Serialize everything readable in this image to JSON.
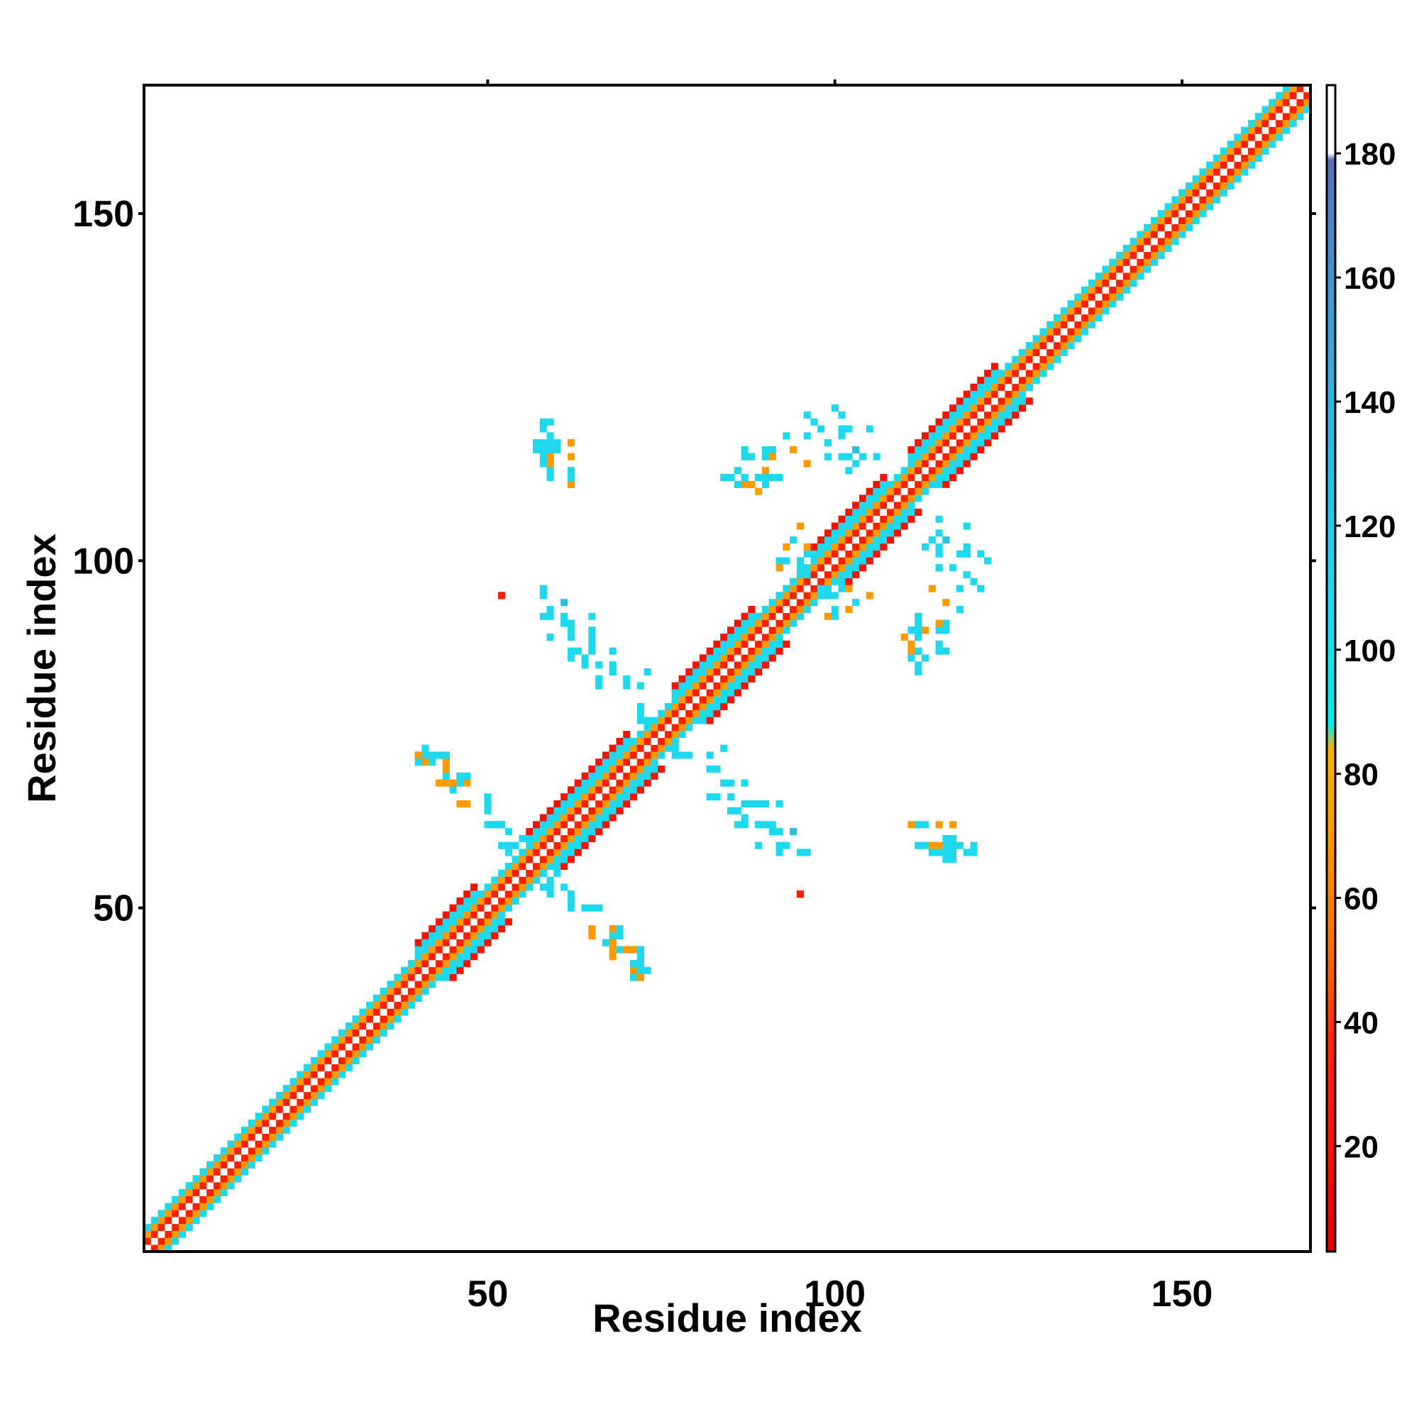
{
  "chart_data": {
    "type": "heatmap",
    "title": "",
    "xlabel": "Residue index",
    "ylabel": "Residue index",
    "xlim": [
      0.5,
      168.5
    ],
    "ylim": [
      0.5,
      168.5
    ],
    "x_ticks": [
      50,
      100,
      150
    ],
    "y_ticks": [
      50,
      100,
      150
    ],
    "colorbar": {
      "range": [
        3,
        191
      ],
      "ticks": [
        20,
        40,
        60,
        80,
        100,
        120,
        140,
        160,
        180
      ],
      "stops": [
        {
          "value": 3,
          "color": "#e60000"
        },
        {
          "value": 38,
          "color": "#ff2a00"
        },
        {
          "value": 50,
          "color": "#ff6a00"
        },
        {
          "value": 70,
          "color": "#ff9900"
        },
        {
          "value": 84,
          "color": "#ffb000"
        },
        {
          "value": 88,
          "color": "#00eeee"
        },
        {
          "value": 110,
          "color": "#1ed8ee"
        },
        {
          "value": 130,
          "color": "#29c0e0"
        },
        {
          "value": 150,
          "color": "#3aa6d8"
        },
        {
          "value": 170,
          "color": "#4c82c8"
        },
        {
          "value": 179,
          "color": "#5a6fb8"
        },
        {
          "value": 180,
          "color": "#ffffff"
        },
        {
          "value": 191,
          "color": "#ffffff"
        }
      ]
    },
    "diagonal_band": {
      "residues": [
        1,
        168
      ],
      "offset_values": {
        "0": 185,
        "1": 30,
        "2": 70,
        "3": 110
      },
      "wide_segments": [
        {
          "from": 40,
          "to": 48,
          "offset4_value": 110,
          "offset5_value": 20
        },
        {
          "from": 56,
          "to": 70,
          "offset4_value": 110,
          "offset5_value": 20
        },
        {
          "from": 77,
          "to": 88,
          "offset4_value": 110,
          "offset5_value": 20
        },
        {
          "from": 97,
          "to": 107,
          "offset4_value": 110,
          "offset5_value": 20
        },
        {
          "from": 111,
          "to": 123,
          "offset4_value": 110,
          "offset5_value": 20
        }
      ]
    },
    "cells": [
      [
        58,
        120,
        110
      ],
      [
        59,
        120,
        110
      ],
      [
        58,
        119,
        110
      ],
      [
        59,
        118,
        110
      ],
      [
        60,
        117,
        110
      ],
      [
        62,
        117,
        70
      ],
      [
        59,
        116,
        110
      ],
      [
        60,
        116,
        110
      ],
      [
        59,
        114,
        110
      ],
      [
        62,
        113,
        110
      ],
      [
        62,
        112,
        70
      ],
      [
        52,
        95,
        30
      ],
      [
        58,
        96,
        110
      ],
      [
        58,
        95,
        110
      ],
      [
        61,
        94,
        130
      ],
      [
        58,
        92,
        110
      ],
      [
        61,
        92,
        110
      ],
      [
        62,
        91,
        110
      ],
      [
        65,
        92,
        110
      ],
      [
        65,
        90,
        110
      ],
      [
        62,
        89,
        110
      ],
      [
        63,
        87,
        110
      ],
      [
        65,
        87,
        110
      ],
      [
        68,
        87,
        110
      ],
      [
        66,
        85,
        110
      ],
      [
        68,
        84,
        110
      ],
      [
        70,
        83,
        110
      ],
      [
        40,
        72,
        70
      ],
      [
        41,
        73,
        110
      ],
      [
        41,
        72,
        110
      ],
      [
        43,
        72,
        70
      ],
      [
        44,
        72,
        70
      ],
      [
        42,
        71,
        110
      ],
      [
        43,
        68,
        70
      ],
      [
        44,
        68,
        70
      ],
      [
        46,
        68,
        110
      ],
      [
        46,
        69,
        110
      ],
      [
        45,
        67,
        110
      ],
      [
        46,
        65,
        70
      ],
      [
        50,
        64,
        110
      ],
      [
        50,
        62,
        110
      ],
      [
        51,
        62,
        110
      ],
      [
        52,
        62,
        110
      ],
      [
        52,
        59,
        110
      ],
      [
        53,
        59,
        110
      ],
      [
        53,
        58,
        110
      ],
      [
        58,
        55,
        110
      ],
      [
        59,
        54,
        110
      ],
      [
        60,
        55,
        110
      ],
      [
        61,
        53,
        110
      ],
      [
        62,
        52,
        110
      ],
      [
        62,
        51,
        110
      ],
      [
        65,
        50,
        110
      ],
      [
        66,
        50,
        110
      ],
      [
        65,
        47,
        70
      ],
      [
        68,
        47,
        70
      ],
      [
        69,
        47,
        110
      ],
      [
        68,
        45,
        70
      ],
      [
        69,
        44,
        110
      ],
      [
        70,
        44,
        70
      ],
      [
        71,
        44,
        70
      ],
      [
        72,
        44,
        110
      ],
      [
        72,
        43,
        110
      ],
      [
        72,
        42,
        110
      ],
      [
        71,
        41,
        70
      ],
      [
        72,
        40,
        70
      ],
      [
        71,
        40,
        110
      ],
      [
        77,
        73,
        110
      ],
      [
        77,
        72,
        110
      ],
      [
        78,
        72,
        110
      ],
      [
        79,
        72,
        110
      ],
      [
        82,
        72,
        110
      ],
      [
        84,
        73,
        110
      ],
      [
        82,
        70,
        110
      ],
      [
        84,
        68,
        110
      ],
      [
        85,
        68,
        110
      ],
      [
        82,
        66,
        110
      ],
      [
        83,
        66,
        110
      ],
      [
        85,
        64,
        110
      ],
      [
        86,
        64,
        110
      ],
      [
        88,
        65,
        110
      ],
      [
        89,
        65,
        110
      ],
      [
        86,
        62,
        110
      ],
      [
        87,
        62,
        110
      ],
      [
        89,
        62,
        110
      ],
      [
        90,
        62,
        110
      ],
      [
        91,
        61,
        110
      ],
      [
        89,
        59,
        110
      ],
      [
        92,
        59,
        110
      ],
      [
        93,
        59,
        110
      ],
      [
        95,
        52,
        30
      ],
      [
        111,
        62,
        70
      ],
      [
        112,
        62,
        110
      ],
      [
        115,
        62,
        70
      ],
      [
        112,
        59,
        110
      ],
      [
        113,
        59,
        110
      ],
      [
        114,
        59,
        70
      ],
      [
        115,
        59,
        70
      ],
      [
        114,
        58,
        110
      ],
      [
        115,
        58,
        110
      ],
      [
        116,
        58,
        110
      ],
      [
        117,
        58,
        110
      ],
      [
        117,
        59,
        110
      ],
      [
        116,
        57,
        110
      ],
      [
        117,
        57,
        110
      ],
      [
        112,
        84,
        110
      ],
      [
        111,
        86,
        110
      ],
      [
        111,
        87,
        70
      ],
      [
        112,
        87,
        70
      ],
      [
        113,
        86,
        110
      ],
      [
        115,
        87,
        110
      ],
      [
        116,
        87,
        110
      ],
      [
        115,
        88,
        70
      ],
      [
        112,
        89,
        110
      ],
      [
        111,
        90,
        110
      ],
      [
        112,
        90,
        110
      ],
      [
        115,
        90,
        110
      ],
      [
        116,
        90,
        110
      ],
      [
        115,
        104,
        110
      ],
      [
        115,
        102,
        110
      ],
      [
        116,
        103,
        130
      ],
      [
        118,
        101,
        110
      ],
      [
        119,
        101,
        110
      ],
      [
        121,
        101,
        110
      ],
      [
        115,
        99,
        110
      ],
      [
        118,
        96,
        110
      ],
      [
        121,
        96,
        110
      ],
      [
        114,
        96,
        70
      ],
      [
        100,
        122,
        110
      ],
      [
        97,
        120,
        110
      ],
      [
        98,
        119,
        110
      ],
      [
        101,
        119,
        110
      ],
      [
        102,
        119,
        110
      ],
      [
        105,
        119,
        110
      ],
      [
        99,
        117,
        110
      ],
      [
        93,
        118,
        110
      ],
      [
        99,
        115,
        110
      ],
      [
        101,
        115,
        110
      ],
      [
        103,
        114,
        110
      ],
      [
        102,
        113,
        110
      ],
      [
        106,
        115,
        110
      ],
      [
        88,
        115,
        110
      ],
      [
        91,
        116,
        110
      ],
      [
        90,
        115,
        110
      ],
      [
        91,
        115,
        70
      ],
      [
        94,
        116,
        70
      ],
      [
        85,
        112,
        110
      ],
      [
        86,
        111,
        110
      ],
      [
        87,
        112,
        110
      ],
      [
        88,
        111,
        70
      ],
      [
        89,
        112,
        110
      ],
      [
        90,
        111,
        110
      ],
      [
        91,
        112,
        110
      ],
      [
        92,
        112,
        110
      ],
      [
        90,
        113,
        70
      ],
      [
        89,
        110,
        70
      ],
      [
        93,
        102,
        70
      ],
      [
        92,
        100,
        110
      ],
      [
        93,
        100,
        110
      ],
      [
        92,
        99,
        70
      ],
      [
        98,
        96,
        110
      ],
      [
        99,
        95,
        110
      ],
      [
        100,
        95,
        110
      ],
      [
        101,
        96,
        110
      ],
      [
        102,
        96,
        70
      ],
      [
        105,
        95,
        70
      ],
      [
        103,
        94,
        110
      ]
    ]
  }
}
